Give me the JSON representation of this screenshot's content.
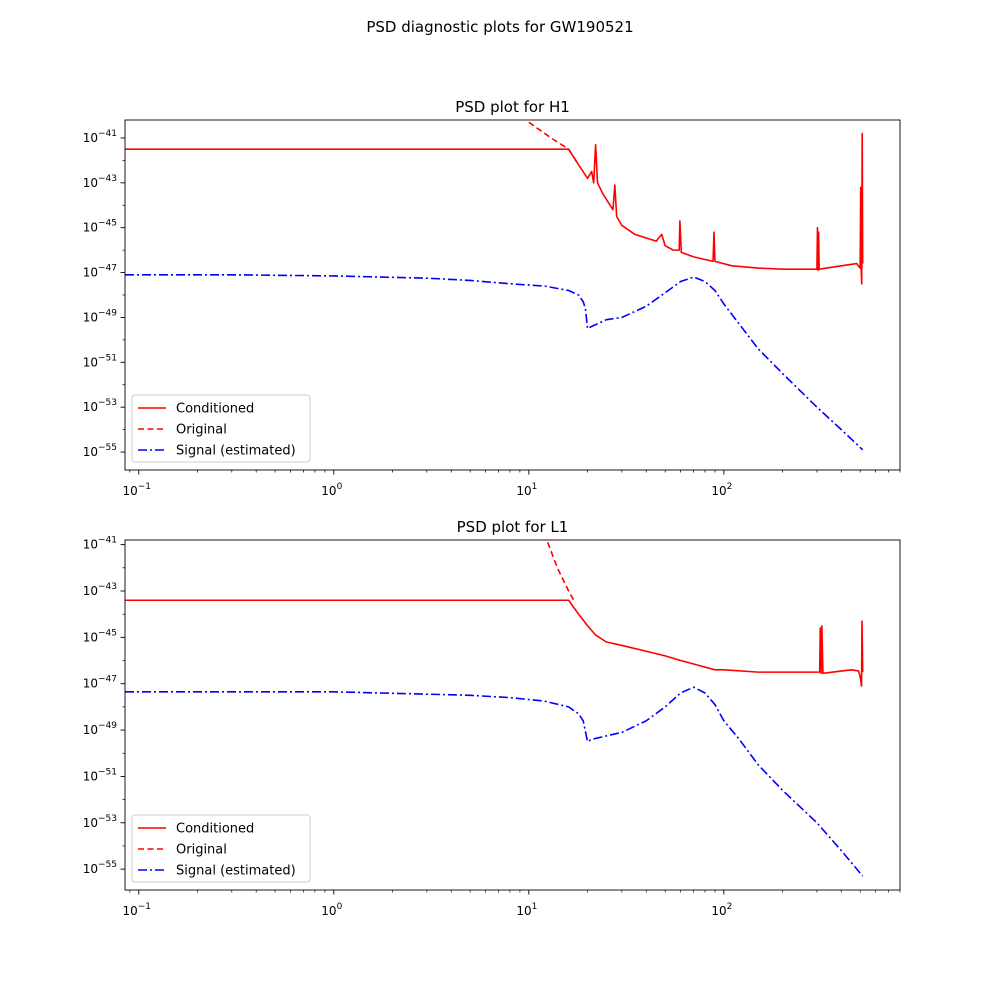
{
  "figure": {
    "suptitle": "PSD diagnostic plots for GW190521"
  },
  "chart_data": [
    {
      "type": "line",
      "title": "PSD plot for H1",
      "xlabel": "",
      "ylabel": "",
      "xscale": "log",
      "yscale": "log",
      "xlim": [
        0.085,
        800
      ],
      "ylim_exponent": [
        -55.8,
        -40.2
      ],
      "x_tick_labels": [
        {
          "base": "10",
          "exp": "−1",
          "value": 0.1
        },
        {
          "base": "10",
          "exp": "0",
          "value": 1
        },
        {
          "base": "10",
          "exp": "1",
          "value": 10
        },
        {
          "base": "10",
          "exp": "2",
          "value": 100
        }
      ],
      "y_tick_labels": [
        {
          "base": "10",
          "exp": "−41",
          "value": -41
        },
        {
          "base": "10",
          "exp": "−43",
          "value": -43
        },
        {
          "base": "10",
          "exp": "−45",
          "value": -45
        },
        {
          "base": "10",
          "exp": "−47",
          "value": -47
        },
        {
          "base": "10",
          "exp": "−49",
          "value": -49
        },
        {
          "base": "10",
          "exp": "−51",
          "value": -51
        },
        {
          "base": "10",
          "exp": "−53",
          "value": -53
        },
        {
          "base": "10",
          "exp": "−55",
          "value": -55
        }
      ],
      "legend": {
        "position": "lower-left",
        "entries": [
          "Conditioned",
          "Original",
          "Signal (estimated)"
        ]
      },
      "series": [
        {
          "name": "Conditioned",
          "color": "#ff0000",
          "dash": "solid",
          "points": [
            [
              0.085,
              -41.5
            ],
            [
              16,
              -41.5
            ],
            [
              18,
              -42.2
            ],
            [
              20,
              -42.8
            ],
            [
              21,
              -42.5
            ],
            [
              21.5,
              -43.0
            ],
            [
              22,
              -41.3
            ],
            [
              22.5,
              -43.0
            ],
            [
              24,
              -43.5
            ],
            [
              27,
              -44.2
            ],
            [
              27.6,
              -43.1
            ],
            [
              28.2,
              -44.5
            ],
            [
              30,
              -44.9
            ],
            [
              35,
              -45.3
            ],
            [
              45,
              -45.6
            ],
            [
              48,
              -45.3
            ],
            [
              50,
              -45.8
            ],
            [
              55,
              -46.0
            ],
            [
              59,
              -46.0
            ],
            [
              59.5,
              -44.7
            ],
            [
              60.5,
              -46.1
            ],
            [
              70,
              -46.3
            ],
            [
              88,
              -46.5
            ],
            [
              89,
              -45.2
            ],
            [
              90,
              -46.5
            ],
            [
              110,
              -46.7
            ],
            [
              150,
              -46.8
            ],
            [
              200,
              -46.85
            ],
            [
              290,
              -46.85
            ],
            [
              300,
              -46.85
            ],
            [
              302,
              -45.0
            ],
            [
              304,
              -46.9
            ],
            [
              306,
              -45.2
            ],
            [
              308,
              -46.85
            ],
            [
              400,
              -46.7
            ],
            [
              480,
              -46.6
            ],
            [
              500,
              -46.8
            ],
            [
              503,
              -43.2
            ],
            [
              506,
              -46.9
            ],
            [
              509,
              -47.5
            ],
            [
              512,
              -40.8
            ],
            [
              515,
              -46.6
            ]
          ]
        },
        {
          "name": "Original",
          "color": "#ff0000",
          "dash": "dashed",
          "points": [
            [
              10,
              -40.3
            ],
            [
              13,
              -41.0
            ],
            [
              16,
              -41.5
            ],
            [
              18,
              -42.2
            ]
          ]
        },
        {
          "name": "Signal (estimated)",
          "color": "#0000ff",
          "dash": "dashdot",
          "points": [
            [
              0.085,
              -47.1
            ],
            [
              0.3,
              -47.1
            ],
            [
              1,
              -47.15
            ],
            [
              3,
              -47.25
            ],
            [
              5,
              -47.35
            ],
            [
              8,
              -47.5
            ],
            [
              12,
              -47.6
            ],
            [
              16,
              -47.8
            ],
            [
              18,
              -48.0
            ],
            [
              19,
              -48.3
            ],
            [
              19.5,
              -48.6
            ],
            [
              20,
              -49.5
            ],
            [
              21,
              -49.4
            ],
            [
              25,
              -49.1
            ],
            [
              30,
              -49.0
            ],
            [
              40,
              -48.5
            ],
            [
              50,
              -47.9
            ],
            [
              60,
              -47.4
            ],
            [
              70,
              -47.2
            ],
            [
              80,
              -47.4
            ],
            [
              90,
              -47.8
            ],
            [
              100,
              -48.4
            ],
            [
              120,
              -49.3
            ],
            [
              150,
              -50.4
            ],
            [
              200,
              -51.5
            ],
            [
              300,
              -53.0
            ],
            [
              400,
              -54.0
            ],
            [
              515,
              -54.9
            ]
          ]
        }
      ]
    },
    {
      "type": "line",
      "title": "PSD plot for L1",
      "xlabel": "",
      "ylabel": "",
      "xscale": "log",
      "yscale": "log",
      "xlim": [
        0.085,
        800
      ],
      "ylim_exponent": [
        -55.9,
        -40.8
      ],
      "x_tick_labels": [
        {
          "base": "10",
          "exp": "−1",
          "value": 0.1
        },
        {
          "base": "10",
          "exp": "0",
          "value": 1
        },
        {
          "base": "10",
          "exp": "1",
          "value": 10
        },
        {
          "base": "10",
          "exp": "2",
          "value": 100
        }
      ],
      "y_tick_labels": [
        {
          "base": "10",
          "exp": "−41",
          "value": -41
        },
        {
          "base": "10",
          "exp": "−43",
          "value": -43
        },
        {
          "base": "10",
          "exp": "−45",
          "value": -45
        },
        {
          "base": "10",
          "exp": "−47",
          "value": -47
        },
        {
          "base": "10",
          "exp": "−49",
          "value": -49
        },
        {
          "base": "10",
          "exp": "−51",
          "value": -51
        },
        {
          "base": "10",
          "exp": "−53",
          "value": -53
        },
        {
          "base": "10",
          "exp": "−55",
          "value": -55
        }
      ],
      "legend": {
        "position": "lower-left",
        "entries": [
          "Conditioned",
          "Original",
          "Signal (estimated)"
        ]
      },
      "series": [
        {
          "name": "Conditioned",
          "color": "#ff0000",
          "dash": "solid",
          "points": [
            [
              0.085,
              -43.4
            ],
            [
              16,
              -43.4
            ],
            [
              18,
              -44.0
            ],
            [
              20,
              -44.5
            ],
            [
              22,
              -44.9
            ],
            [
              25,
              -45.2
            ],
            [
              30,
              -45.35
            ],
            [
              40,
              -45.6
            ],
            [
              50,
              -45.8
            ],
            [
              60,
              -46.0
            ],
            [
              70,
              -46.15
            ],
            [
              90,
              -46.4
            ],
            [
              100,
              -46.4
            ],
            [
              150,
              -46.5
            ],
            [
              200,
              -46.5
            ],
            [
              300,
              -46.5
            ],
            [
              310,
              -46.5
            ],
            [
              312,
              -44.6
            ],
            [
              315,
              -46.55
            ],
            [
              318,
              -44.5
            ],
            [
              322,
              -46.55
            ],
            [
              450,
              -46.4
            ],
            [
              490,
              -46.45
            ],
            [
              500,
              -46.7
            ],
            [
              508,
              -47.1
            ],
            [
              511,
              -44.3
            ],
            [
              515,
              -46.5
            ]
          ]
        },
        {
          "name": "Original",
          "color": "#ff0000",
          "dash": "dashed",
          "points": [
            [
              12.5,
              -40.9
            ],
            [
              14,
              -42.0
            ],
            [
              16,
              -43.0
            ],
            [
              17,
              -43.4
            ]
          ]
        },
        {
          "name": "Signal (estimated)",
          "color": "#0000ff",
          "dash": "dashdot",
          "points": [
            [
              0.085,
              -47.35
            ],
            [
              0.3,
              -47.35
            ],
            [
              1,
              -47.35
            ],
            [
              3,
              -47.45
            ],
            [
              5,
              -47.5
            ],
            [
              8,
              -47.6
            ],
            [
              12,
              -47.75
            ],
            [
              16,
              -48.0
            ],
            [
              18,
              -48.3
            ],
            [
              19,
              -48.6
            ],
            [
              20,
              -49.5
            ],
            [
              21,
              -49.4
            ],
            [
              25,
              -49.25
            ],
            [
              30,
              -49.1
            ],
            [
              40,
              -48.6
            ],
            [
              50,
              -48.0
            ],
            [
              60,
              -47.4
            ],
            [
              70,
              -47.15
            ],
            [
              80,
              -47.4
            ],
            [
              90,
              -47.9
            ],
            [
              100,
              -48.6
            ],
            [
              120,
              -49.4
            ],
            [
              150,
              -50.5
            ],
            [
              200,
              -51.6
            ],
            [
              300,
              -53.0
            ],
            [
              400,
              -54.2
            ],
            [
              515,
              -55.3
            ]
          ]
        }
      ]
    }
  ]
}
